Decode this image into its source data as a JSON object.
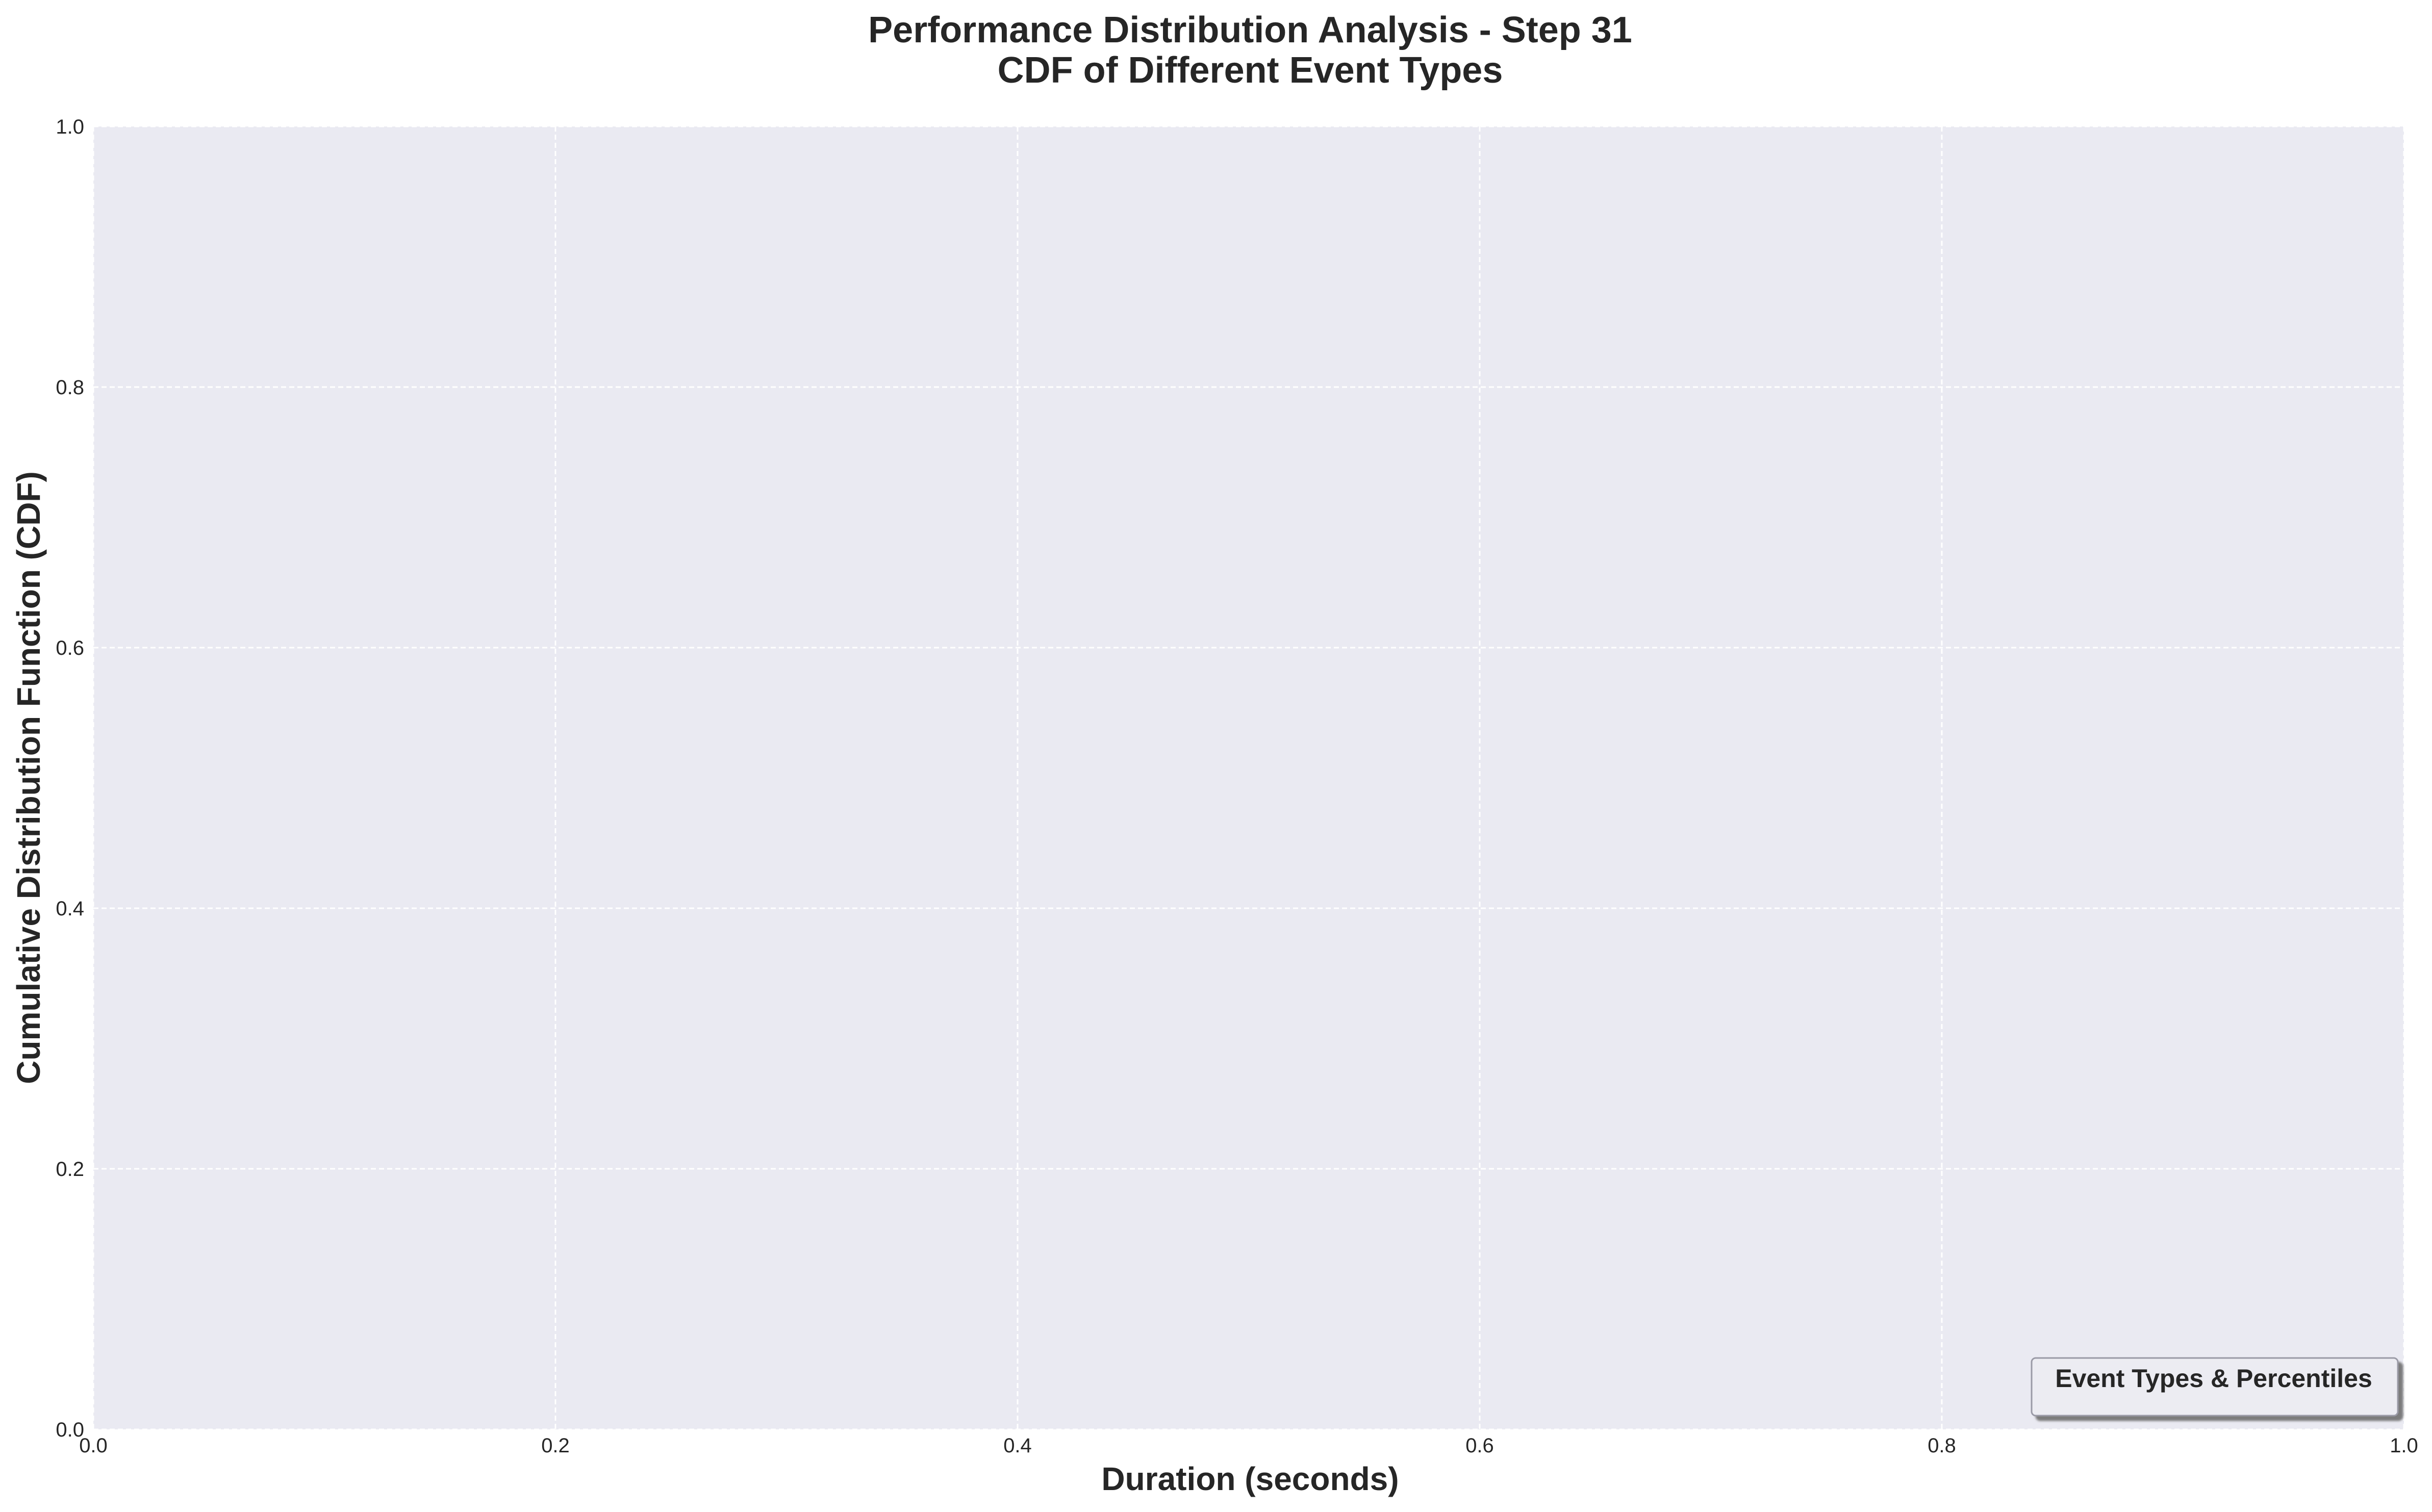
{
  "chart_data": {
    "type": "line",
    "title": "Performance Distribution Analysis - Step 31",
    "subtitle": "CDF of Different Event Types",
    "xlabel": "Duration (seconds)",
    "ylabel": "Cumulative Distribution Function (CDF)",
    "xlim": [
      0.0,
      1.0
    ],
    "ylim": [
      0.0,
      1.0
    ],
    "x_ticks": [
      "0.0",
      "0.2",
      "0.4",
      "0.6",
      "0.8",
      "1.0"
    ],
    "y_ticks": [
      "0.0",
      "0.2",
      "0.4",
      "0.6",
      "0.8",
      "1.0"
    ],
    "grid": true,
    "legend": {
      "title": "Event Types & Percentiles",
      "placement": "lower-right",
      "entries": []
    },
    "series": [],
    "colors": {
      "plot_background": "#eaeaf2",
      "grid": "#ffffff",
      "text": "#262626",
      "legend_background": "#ececf2",
      "legend_border": "#9a9aa6"
    }
  }
}
